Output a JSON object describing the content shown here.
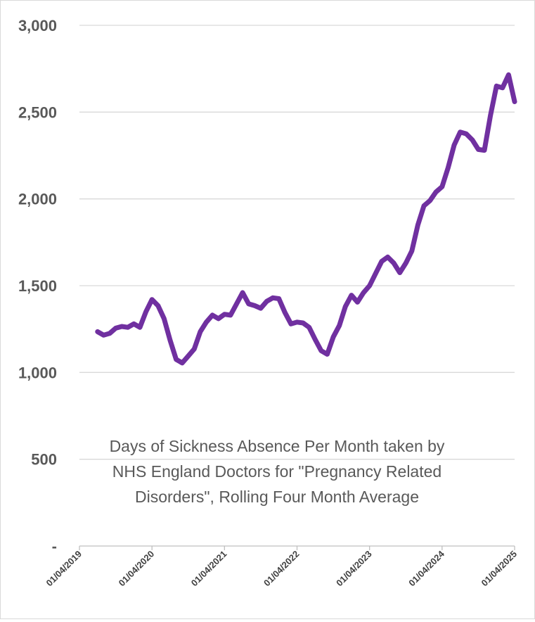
{
  "chart_data": {
    "type": "line",
    "title_lines": [
      "Days of Sickness Absence Per Month taken by",
      "NHS England Doctors for \"Pregnancy Related",
      "Disorders\", Rolling Four Month Average"
    ],
    "xlabel": "",
    "ylabel": "",
    "ylim": [
      0,
      3000
    ],
    "yticks": [
      0,
      500,
      1000,
      1500,
      2000,
      2500,
      3000
    ],
    "ytick_labels": [
      "-",
      "500",
      "1,000",
      "1,500",
      "2,000",
      "2,500",
      "3,000"
    ],
    "xticks": [
      "01/04/2019",
      "01/04/2020",
      "01/04/2021",
      "01/04/2022",
      "01/04/2023",
      "01/04/2024",
      "01/04/2025"
    ],
    "grid": true,
    "line_color": "#7030a0",
    "grid_color": "#d9d9d9",
    "axis_color": "#bfbfbf",
    "start_month_offset": 3,
    "series": [
      {
        "name": "Rolling four month average",
        "values": [
          1235,
          1215,
          1225,
          1255,
          1265,
          1260,
          1280,
          1260,
          1350,
          1420,
          1385,
          1310,
          1185,
          1075,
          1055,
          1095,
          1135,
          1235,
          1290,
          1330,
          1310,
          1335,
          1330,
          1395,
          1460,
          1395,
          1385,
          1370,
          1410,
          1430,
          1425,
          1345,
          1280,
          1290,
          1285,
          1260,
          1190,
          1125,
          1105,
          1205,
          1270,
          1380,
          1445,
          1405,
          1460,
          1500,
          1570,
          1640,
          1665,
          1630,
          1575,
          1630,
          1700,
          1850,
          1960,
          1990,
          2040,
          2070,
          2180,
          2310,
          2385,
          2375,
          2340,
          2285,
          2280,
          2480,
          2650,
          2640,
          2715,
          2560
        ]
      }
    ]
  }
}
